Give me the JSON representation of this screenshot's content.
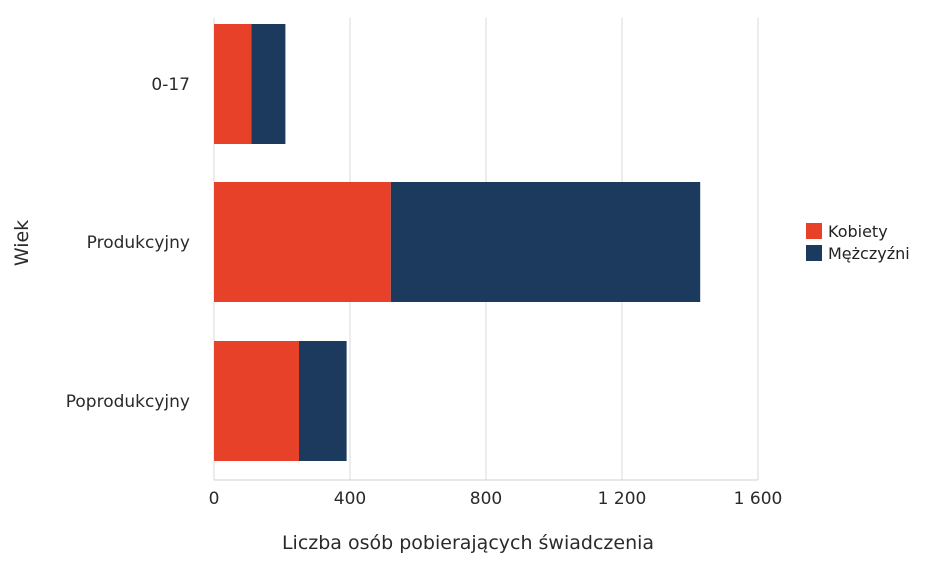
{
  "chart_data": {
    "type": "bar",
    "orientation": "horizontal",
    "stacked": true,
    "title": "",
    "xlabel": "Liczba osób pobierających świadczenia",
    "ylabel": "Wiek",
    "categories": [
      "0-17",
      "Produkcyjny",
      "Poprodukcyjny"
    ],
    "series": [
      {
        "name": "Kobiety",
        "values": [
          110,
          520,
          250
        ],
        "color": "#e8412a"
      },
      {
        "name": "Mężczyźni",
        "values": [
          100,
          910,
          140
        ],
        "color": "#1c3a5e"
      }
    ],
    "xlim": [
      0,
      1600
    ],
    "xticks": [
      0,
      400,
      800,
      1200,
      1600
    ],
    "xtick_labels": [
      "0",
      "400",
      "800",
      "1 200",
      "1 600"
    ],
    "grid": true,
    "legend_position": "right"
  }
}
